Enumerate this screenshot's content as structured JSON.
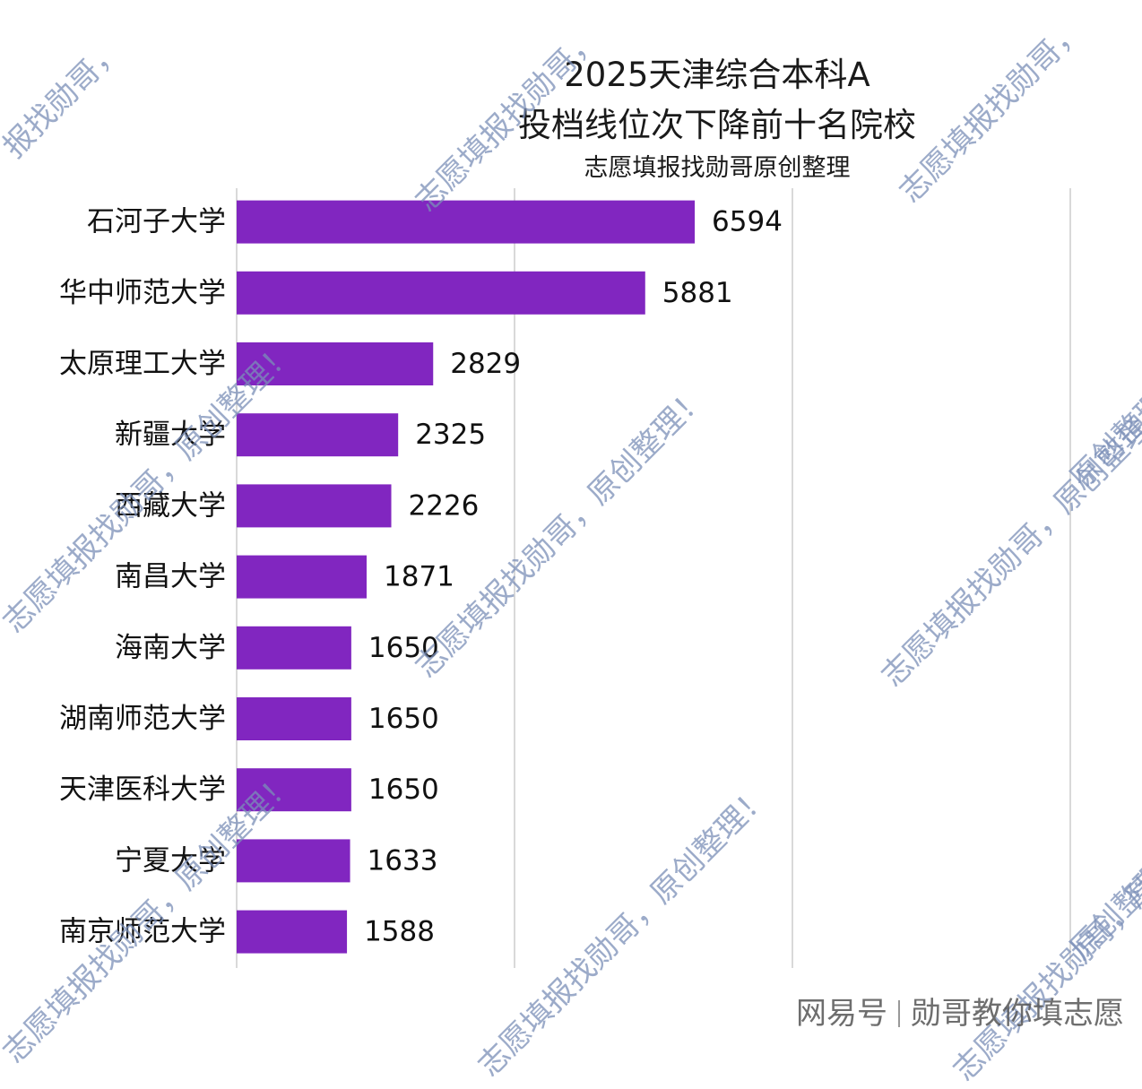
{
  "chart_data": {
    "type": "bar",
    "orientation": "horizontal",
    "title_lines": [
      "2025天津综合本科A",
      "投档线位次下降前十名院校"
    ],
    "subtitle": "志愿填报找勋哥原创整理",
    "categories": [
      "石河子大学",
      "华中师范大学",
      "太原理工大学",
      "新疆大学",
      "西藏大学",
      "南昌大学",
      "海南大学",
      "湖南师范大学",
      "天津医科大学",
      "宁夏大学",
      "南京师范大学"
    ],
    "values": [
      6594,
      5881,
      2829,
      2325,
      2226,
      1871,
      1650,
      1650,
      1650,
      1633,
      1588
    ],
    "xlim": [
      0,
      12000
    ],
    "grid": true,
    "bar_color": "#8126c0"
  },
  "watermarks": {
    "a": "志愿填报找勋哥，原创整理！",
    "b": "报找勋哥，",
    "c": "志愿填报找勋哥，",
    "d": "原创整理！"
  },
  "footer": {
    "source": "网易号",
    "author": "勋哥教你填志愿"
  }
}
